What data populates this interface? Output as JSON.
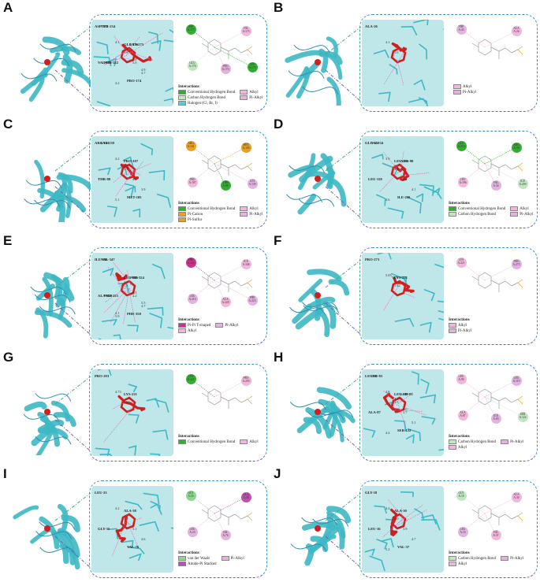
{
  "colors": {
    "protein": "#3db8c4",
    "ligand": "#d01f1f",
    "pocket_bg": "#bfe6e8",
    "frame_top": "#3a8fc7",
    "frame_bottom": "#7a5ab8",
    "conventional_h_bond": "#2fae2f",
    "carbon_h_bond": "#bfe8bf",
    "alkyl": "#f1b6d9",
    "pi_alkyl": "#e4b2e0",
    "pi_cation": "#f0a020",
    "pi_sulfur": "#e7a020",
    "halogen": "#4fd1d9",
    "pi_pi_t_shaped": "#d0308a",
    "vdw": "#8bd78b",
    "amide_pi_stacked": "#c050b0"
  },
  "panels": [
    {
      "letter": "A",
      "residues": [
        "ASP-177",
        "GLU-176",
        "VAL-175",
        "PRO-174",
        "TYR-234",
        "LYS-173",
        "PHE-122"
      ],
      "distances": [
        "4.1",
        "3.8",
        "5.0",
        "4.7",
        "4.2",
        "5.1",
        "4.4",
        "4.9"
      ],
      "legend_title": "Interactions",
      "legend_left": [
        "Conventional Hydrogen Bond",
        "Carbon Hydrogen Bond",
        "Halogen (Cl, Br, I)"
      ],
      "legend_right": [
        "Alkyl",
        "Pi-Alkyl"
      ],
      "bubbles": [
        {
          "label": "ASP A:177",
          "type": "conventional_h_bond"
        },
        {
          "label": "VAL A:175",
          "type": "alkyl"
        },
        {
          "label": "GLU A:176",
          "type": "carbon_h_bond"
        },
        {
          "label": "PRO A:174",
          "type": "pi_alkyl"
        },
        {
          "label": "LYS A:173",
          "type": "conventional_h_bond"
        }
      ]
    },
    {
      "letter": "B",
      "residues": [
        "ALA-26"
      ],
      "distances": [
        "4.1",
        "5.0"
      ],
      "legend_title": "",
      "legend_left": [],
      "legend_right": [
        "Alkyl",
        "Pi-Alkyl"
      ],
      "bubbles": [
        {
          "label": "TRP A:43",
          "type": "pi_alkyl"
        },
        {
          "label": "ALA A:26",
          "type": "alkyl"
        }
      ]
    },
    {
      "letter": "C",
      "residues": [
        "ARG-141",
        "PRO-107",
        "THR-88",
        "MET-105",
        "LYS-139"
      ],
      "distances": [
        "4.2",
        "5.3",
        "4.6",
        "3.9",
        "5.1",
        "2.7"
      ],
      "legend_title": "Interactions",
      "legend_left": [
        "Conventional Hydrogen Bond",
        "Pi-Cation",
        "Pi-Sulfur"
      ],
      "legend_right": [
        "Alkyl",
        "Pi-Alkyl"
      ],
      "bubbles": [
        {
          "label": "ARG A:141",
          "type": "pi_cation"
        },
        {
          "label": "MET A:105",
          "type": "pi_sulfur"
        },
        {
          "label": "PRO A:107",
          "type": "alkyl"
        },
        {
          "label": "THR A:88",
          "type": "conventional_h_bond"
        },
        {
          "label": "LYS A:139",
          "type": "pi_alkyl"
        }
      ]
    },
    {
      "letter": "D",
      "residues": [
        "GLU-210",
        "LEU-196",
        "LEU-118",
        "ILE-200",
        "VAL-34",
        "ARG-90"
      ],
      "distances": [
        "3.9",
        "4.8",
        "5.2",
        "4.1",
        "4.6"
      ],
      "legend_title": "Interactions",
      "legend_left": [
        "Conventional Hydrogen Bond",
        "Carbon Hydrogen Bond"
      ],
      "legend_right": [
        "Alkyl",
        "Pi-Alkyl"
      ],
      "bubbles": [
        {
          "label": "GLU A:210",
          "type": "conventional_h_bond"
        },
        {
          "label": "ARG A:90",
          "type": "conventional_h_bond"
        },
        {
          "label": "LEU A:196",
          "type": "alkyl"
        },
        {
          "label": "VAL A:34",
          "type": "pi_alkyl"
        },
        {
          "label": "ILE A:200",
          "type": "carbon_h_bond"
        }
      ]
    },
    {
      "letter": "E",
      "residues": [
        "ILE-346",
        "LEU-216",
        "ALA-220",
        "PHE-350",
        "VAL-347",
        "PHE-324",
        "PHE-223"
      ],
      "distances": [
        "5.5",
        "5.3",
        "4.2",
        "4.7",
        "5.9",
        "4.7",
        "6.3",
        "5.5",
        "4.1"
      ],
      "legend_title": "Interactions",
      "legend_left": [
        "Pi-Pi T-shaped",
        "Alkyl"
      ],
      "legend_right": [
        "Pi-Alkyl"
      ],
      "bubbles": [
        {
          "label": "PHE A:324",
          "type": "pi_pi_t_shaped"
        },
        {
          "label": "ILE A:346",
          "type": "alkyl"
        },
        {
          "label": "LEU A:216",
          "type": "pi_alkyl"
        },
        {
          "label": "ALA A:220",
          "type": "alkyl"
        },
        {
          "label": "PHE A:223",
          "type": "pi_alkyl"
        }
      ]
    },
    {
      "letter": "F",
      "residues": [
        "PRO-273",
        "LYS-221"
      ],
      "distances": [
        "5.05",
        "5.42"
      ],
      "legend_title": "Interactions",
      "legend_left": [
        "Alkyl",
        "Pi-Alkyl"
      ],
      "legend_right": [],
      "bubbles": [
        {
          "label": "LYS A:221",
          "type": "alkyl"
        },
        {
          "label": "PRO A:273",
          "type": "pi_alkyl"
        }
      ]
    },
    {
      "letter": "G",
      "residues": [
        "PRO-293",
        "LYS-221"
      ],
      "distances": [
        "4.73",
        "2.86"
      ],
      "legend_title": "Interactions",
      "legend_left": [
        "Conventional Hydrogen Bond"
      ],
      "legend_right": [
        "Alkyl"
      ],
      "bubbles": [
        {
          "label": "LYS A:221",
          "type": "conventional_h_bond"
        },
        {
          "label": "PRO A:293",
          "type": "alkyl"
        }
      ]
    },
    {
      "letter": "H",
      "residues": [
        "LEU-90",
        "LEU-119",
        "ALA-87",
        "SER-122",
        "ILE-83",
        "LEU-83"
      ],
      "distances": [
        "4.8",
        "4.9",
        "3.7",
        "5.1",
        "4.4",
        "4.2",
        "5.0"
      ],
      "legend_title": "Interactions",
      "legend_left": [
        "Carbon Hydrogen Bond",
        "Alkyl"
      ],
      "legend_right": [
        "Pi-Alkyl"
      ],
      "bubbles": [
        {
          "label": "LEU A:90",
          "type": "alkyl"
        },
        {
          "label": "LEU A:119",
          "type": "pi_alkyl"
        },
        {
          "label": "ALA A:87",
          "type": "alkyl"
        },
        {
          "label": "ILE A:83",
          "type": "pi_alkyl"
        },
        {
          "label": "SER A:122",
          "type": "carbon_h_bond"
        }
      ]
    },
    {
      "letter": "I",
      "residues": [
        "LEU-23",
        "ALA-38",
        "GLY-35",
        "VAL-76"
      ],
      "distances": [
        "4.2",
        "3.8",
        "5.1",
        "4.6"
      ],
      "legend_title": "Interactions",
      "legend_left": [
        "van der Waals",
        "Amide-Pi Stacked"
      ],
      "legend_right": [
        "Pi-Alkyl"
      ],
      "bubbles": [
        {
          "label": "GLY A:35",
          "type": "vdw"
        },
        {
          "label": "ALA A:38",
          "type": "amide_pi_stacked"
        },
        {
          "label": "LEU A:23",
          "type": "pi_alkyl"
        },
        {
          "label": "VAL A:76",
          "type": "pi_alkyl"
        }
      ]
    },
    {
      "letter": "J",
      "residues": [
        "GLY-18",
        "ALA-30",
        "LEU-16",
        "VAL-37"
      ],
      "distances": [
        "4.4",
        "5.0",
        "3.9",
        "4.7",
        "5.2"
      ],
      "legend_title": "Interactions",
      "legend_left": [
        "Carbon Hydrogen Bond",
        "Alkyl"
      ],
      "legend_right": [
        "Pi-Alkyl"
      ],
      "bubbles": [
        {
          "label": "GLY A:18",
          "type": "carbon_h_bond"
        },
        {
          "label": "ALA A:30",
          "type": "alkyl"
        },
        {
          "label": "LEU A:16",
          "type": "pi_alkyl"
        },
        {
          "label": "VAL A:37",
          "type": "alkyl"
        }
      ]
    }
  ]
}
